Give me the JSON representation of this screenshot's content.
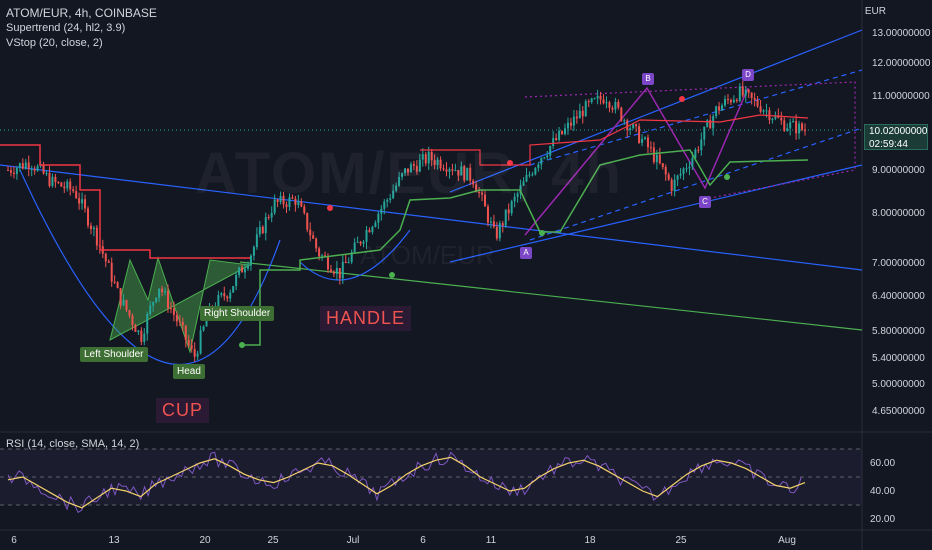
{
  "legend": {
    "title": "ATOM/EUR, 4h, COINBASE",
    "indicator1": "Supertrend (24, hl2, 3.9)",
    "indicator2": "VStop (20, close, 2)"
  },
  "rsi_legend": "RSI (14, close, SMA, 14, 2)",
  "currency": "EUR",
  "last_price": {
    "value": "10.02000000",
    "countdown": "02:59:44"
  },
  "watermark": {
    "symbol": "ATOM/EUR, 4h",
    "pair": "ATOM/EUR"
  },
  "annotations": {
    "left_shoulder": "Left Shoulder",
    "head": "Head",
    "right_shoulder": "Right Shoulder",
    "cup": "CUP",
    "handle": "HANDLE"
  },
  "waves": [
    "A",
    "B",
    "C",
    "D"
  ],
  "colors": {
    "background": "#131722",
    "bull": "#26a69a",
    "bear": "#ef5350",
    "channel": "#2962ff",
    "supertrend_up": "#4caf50",
    "supertrend_down": "#f23645",
    "rsi": "#7e57c2",
    "rsi_ma": "#f5d36b",
    "wave": "#9c27b0"
  },
  "chart_data": [
    {
      "type": "candlestick",
      "title": "ATOM/EUR, 4h, COINBASE",
      "x_ticks": [
        "6",
        "13",
        "20",
        "25",
        "Jul",
        "6",
        "11",
        "18",
        "25",
        "Aug"
      ],
      "y_ticks": [
        "13.00000000",
        "12.00000000",
        "11.00000000",
        "10.02000000",
        "9.00000000",
        "8.00000000",
        "7.00000000",
        "6.40000000",
        "5.80000000",
        "5.40000000",
        "5.00000000",
        "4.65000000"
      ],
      "ylim": [
        4.5,
        13.5
      ],
      "price_path": [
        {
          "x": 0,
          "y": 9.0
        },
        {
          "x": 5,
          "y": 9.2
        },
        {
          "x": 10,
          "y": 8.7
        },
        {
          "x": 15,
          "y": 8.5
        },
        {
          "x": 20,
          "y": 7.5
        },
        {
          "x": 25,
          "y": 6.4
        },
        {
          "x": 30,
          "y": 5.7
        },
        {
          "x": 34,
          "y": 6.6
        },
        {
          "x": 38,
          "y": 6.0
        },
        {
          "x": 42,
          "y": 5.4
        },
        {
          "x": 46,
          "y": 6.2
        },
        {
          "x": 50,
          "y": 6.5
        },
        {
          "x": 55,
          "y": 7.2
        },
        {
          "x": 60,
          "y": 8.2
        },
        {
          "x": 65,
          "y": 8.3
        },
        {
          "x": 70,
          "y": 7.2
        },
        {
          "x": 75,
          "y": 6.8
        },
        {
          "x": 80,
          "y": 7.5
        },
        {
          "x": 85,
          "y": 8.2
        },
        {
          "x": 90,
          "y": 9.0
        },
        {
          "x": 95,
          "y": 9.3
        },
        {
          "x": 100,
          "y": 9.1
        },
        {
          "x": 105,
          "y": 8.8
        },
        {
          "x": 110,
          "y": 7.5
        },
        {
          "x": 115,
          "y": 8.4
        },
        {
          "x": 120,
          "y": 9.3
        },
        {
          "x": 125,
          "y": 9.9
        },
        {
          "x": 130,
          "y": 10.6
        },
        {
          "x": 135,
          "y": 11.0
        },
        {
          "x": 140,
          "y": 10.2
        },
        {
          "x": 145,
          "y": 9.5
        },
        {
          "x": 150,
          "y": 8.6
        },
        {
          "x": 155,
          "y": 9.4
        },
        {
          "x": 160,
          "y": 10.6
        },
        {
          "x": 165,
          "y": 11.1
        },
        {
          "x": 170,
          "y": 10.7
        },
        {
          "x": 175,
          "y": 10.2
        },
        {
          "x": 180,
          "y": 10.02
        }
      ],
      "series": [
        {
          "name": "Supertrend (24, hl2, 3.9)"
        },
        {
          "name": "VStop (20, close, 2)"
        }
      ]
    },
    {
      "type": "line",
      "title": "RSI (14, close, SMA, 14, 2)",
      "y_ticks": [
        "60.00",
        "40.00",
        "20.00"
      ],
      "ylim": [
        15,
        75
      ],
      "rsi": [
        48,
        50,
        44,
        38,
        32,
        28,
        35,
        42,
        40,
        36,
        45,
        50,
        55,
        60,
        63,
        58,
        52,
        48,
        46,
        50,
        55,
        60,
        58,
        52,
        45,
        38,
        44,
        52,
        58,
        62,
        64,
        58,
        50,
        45,
        40,
        42,
        50,
        56,
        60,
        62,
        58,
        52,
        46,
        40,
        36,
        44,
        52,
        58,
        62,
        60,
        56,
        50,
        44,
        42,
        46
      ]
    }
  ]
}
